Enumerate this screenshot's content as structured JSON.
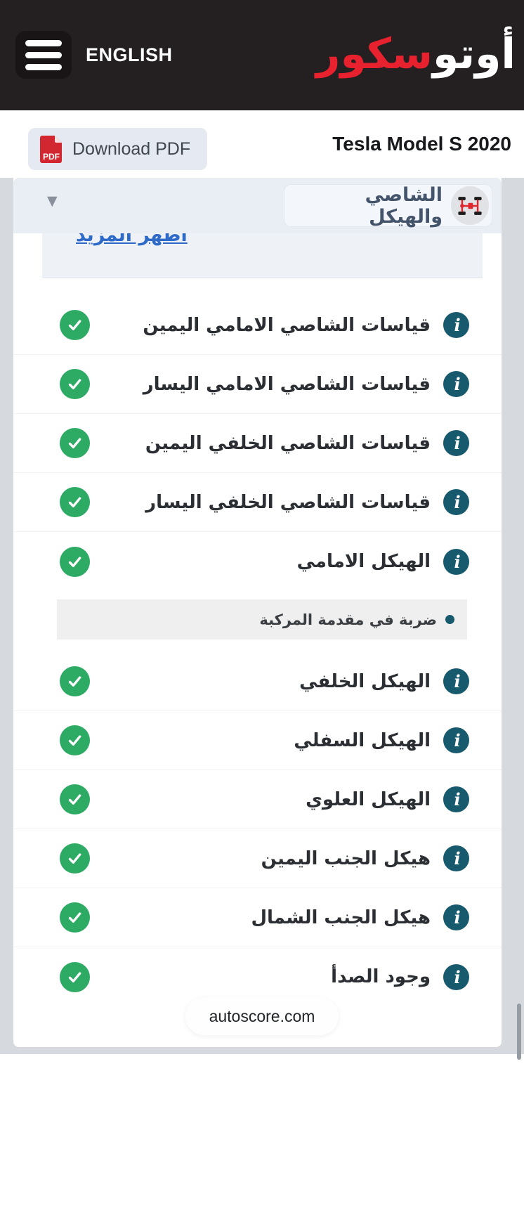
{
  "header": {
    "language_label": "ENGLISH",
    "logo_white": "أوتو",
    "logo_red": "سكور"
  },
  "toolbar": {
    "download_pdf_label": "Download PDF",
    "pdf_icon_label": "PDF",
    "vehicle_title": "Tesla Model S 2020"
  },
  "section": {
    "title": "الشاصي والهيكل",
    "show_more_label": "اظهر المزيد"
  },
  "checklist": {
    "items": [
      {
        "label": "قياسات الشاصي الامامي اليمين",
        "status": "pass"
      },
      {
        "label": "قياسات الشاصي الامامي اليسار",
        "status": "pass"
      },
      {
        "label": "قياسات الشاصي الخلفي اليمين",
        "status": "pass"
      },
      {
        "label": "قياسات الشاصي الخلفي اليسار",
        "status": "pass"
      },
      {
        "label": "الهيكل الامامي",
        "status": "pass",
        "note": "ضربة في مقدمة المركبة"
      },
      {
        "label": "الهيكل الخلفي",
        "status": "pass"
      },
      {
        "label": "الهيكل السفلي",
        "status": "pass"
      },
      {
        "label": "الهيكل العلوي",
        "status": "pass"
      },
      {
        "label": "هيكل الجنب اليمين",
        "status": "pass"
      },
      {
        "label": "هيكل الجنب الشمال",
        "status": "pass"
      },
      {
        "label": "وجود الصدأ",
        "status": "pass"
      }
    ]
  },
  "footer": {
    "site_label": "autoscore.com"
  },
  "icons": {
    "info_glyph": "i",
    "caret_glyph": "▼"
  },
  "colors": {
    "header-bg": "#242021",
    "header-button-bg": "#191516",
    "logo-red": "#e8212e",
    "pdf-red": "#d22730",
    "pdf-button-bg": "#e4e9f2",
    "title-dark": "#17191c",
    "panel-bg": "#e9edf4",
    "chip-bg": "#f3f6fa",
    "chip-border": "#e2e6ed",
    "chip-text": "#44546a",
    "icon-circle-bg": "#e0e2e6",
    "link-blue": "#2e6ac8",
    "notes-bg": "#eef1f6",
    "page-gutter": "#d6dade",
    "info-teal": "#185a6d",
    "check-green": "#2dab64",
    "note-bg": "#efefef",
    "label-dark": "#2b2e33",
    "scrollbar": "#959ca4"
  }
}
